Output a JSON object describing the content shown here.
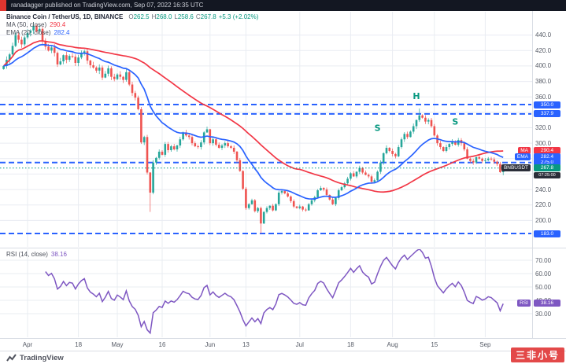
{
  "topbar": {
    "publish_text": "ranadagger published on TradingView.com, Sep 07, 2022 16:35 UTC"
  },
  "legend": {
    "symbol": "Binance Coin / TetherUS, 1D, BINANCE",
    "ohlc_items": [
      {
        "k": "O",
        "v": "262.5"
      },
      {
        "k": "H",
        "v": "268.0"
      },
      {
        "k": "L",
        "v": "258.6"
      },
      {
        "k": "C",
        "v": "267.8"
      }
    ],
    "change": "+5.3 (+2.02%)",
    "ma": {
      "label": "MA (50, close)",
      "value": "290.4"
    },
    "ema": {
      "label": "EMA (20, close)",
      "value": "282.4"
    }
  },
  "rsi_legend": {
    "label": "RSI (14, close)",
    "value": "38.16"
  },
  "axis": {
    "price_ticks": [
      {
        "label": "440.0",
        "value": 440
      },
      {
        "label": "420.0",
        "value": 420
      },
      {
        "label": "400.0",
        "value": 400
      },
      {
        "label": "380.0",
        "value": 380
      },
      {
        "label": "360.0",
        "value": 360
      },
      {
        "label": "320.0",
        "value": 320
      },
      {
        "label": "300.0",
        "value": 300
      },
      {
        "label": "240.0",
        "value": 240
      },
      {
        "label": "220.0",
        "value": 220
      },
      {
        "label": "200.0",
        "value": 200
      }
    ],
    "level_badges": [
      {
        "label": "350.0",
        "value": 350
      },
      {
        "label": "337.9",
        "value": 337.9
      },
      {
        "label": "275.0",
        "value": 275
      },
      {
        "label": "183.0",
        "value": 183
      }
    ],
    "ma_badge": {
      "name": "MA",
      "value": "290.4",
      "price": 290.4
    },
    "ema_badge": {
      "name": "EMA",
      "value": "282.4",
      "price": 282.4
    },
    "symbol_badge": {
      "name": "BNBUSDT",
      "value": "267.8",
      "price": 267.8,
      "countdown": "07:25:00"
    },
    "rsi_badge": {
      "name": "RSI",
      "value": "38.16",
      "rsi": 38.16
    },
    "rsi_ticks": [
      {
        "label": "70.00",
        "value": 70
      },
      {
        "label": "60.00",
        "value": 60
      },
      {
        "label": "50.00",
        "value": 50
      },
      {
        "label": "40.00",
        "value": 40
      },
      {
        "label": "30.00",
        "value": 30
      }
    ],
    "time_ticks": [
      {
        "label": "Apr",
        "day": 0
      },
      {
        "label": "18",
        "day": 17
      },
      {
        "label": "May",
        "day": 30
      },
      {
        "label": "16",
        "day": 45
      },
      {
        "label": "Jun",
        "day": 61
      },
      {
        "label": "13",
        "day": 73
      },
      {
        "label": "Jul",
        "day": 91
      },
      {
        "label": "18",
        "day": 108
      },
      {
        "label": "Aug",
        "day": 122
      },
      {
        "label": "15",
        "day": 136
      },
      {
        "label": "Sep",
        "day": 153
      }
    ]
  },
  "chart_data": {
    "type": "candlestick",
    "symbol": "BNB/USDT",
    "exchange": "BINANCE",
    "interval": "1D",
    "title": "Binance Coin / TetherUS, 1D, BINANCE",
    "start_date": "2022-03-24",
    "price_range": [
      180,
      460
    ],
    "close": [
      400,
      408,
      415,
      426,
      440,
      434,
      428,
      437,
      443,
      446,
      452,
      445,
      448,
      432,
      425,
      420,
      424,
      417,
      402,
      406,
      414,
      408,
      413,
      412,
      404,
      411,
      416,
      419,
      407,
      401,
      398,
      394,
      398,
      385,
      390,
      397,
      386,
      383,
      389,
      386,
      382,
      392,
      376,
      365,
      359,
      344,
      301,
      308,
      262,
      236,
      275,
      281,
      289,
      285,
      299,
      291,
      296,
      292,
      297,
      305,
      314,
      310,
      308,
      300,
      296,
      295,
      301,
      314,
      318,
      300,
      305,
      298,
      294,
      297,
      300,
      296,
      294,
      289,
      278,
      264,
      241,
      216,
      221,
      226,
      212,
      216,
      196,
      211,
      216,
      219,
      213,
      221,
      236,
      238,
      235,
      231,
      225,
      218,
      216,
      218,
      214,
      213,
      221,
      226,
      230,
      239,
      242,
      240,
      233,
      227,
      221,
      229,
      239,
      243,
      248,
      254,
      261,
      257,
      263,
      268,
      262,
      259,
      257,
      250,
      252,
      263,
      275,
      287,
      294,
      290,
      286,
      283,
      295,
      305,
      312,
      308,
      315,
      322,
      330,
      336,
      333,
      328,
      330,
      322,
      310,
      300,
      295,
      290,
      295,
      299,
      302,
      298,
      304,
      300,
      292,
      280,
      277,
      275,
      282,
      280,
      277,
      278,
      280,
      279,
      276,
      273,
      262.5,
      267.8
    ],
    "special_lows": {
      "49": 211,
      "86": 183
    },
    "special_highs": {
      "139": 345
    },
    "last_candle": {
      "open": 262.5,
      "high": 268.0,
      "low": 258.6,
      "close": 267.8,
      "change": "+5.3 (+2.02%)"
    },
    "levels": [
      350.0,
      337.9,
      275.0,
      183.0
    ],
    "annotations": [
      {
        "text": "S",
        "day": 117,
        "price": 316
      },
      {
        "text": "H",
        "day": 130,
        "price": 357
      },
      {
        "text": "S",
        "day": 143,
        "price": 324
      }
    ],
    "overlays": [
      {
        "name": "MA",
        "period": 50,
        "current": 290.4
      },
      {
        "name": "EMA",
        "period": 20,
        "current": 282.4
      }
    ],
    "rsi": {
      "period": 14,
      "current": 38.16,
      "ticks": [
        30,
        40,
        50,
        60,
        70
      ]
    }
  },
  "watermark": {
    "text": "三非小号"
  },
  "footer": {
    "logo_text": "TradingView"
  },
  "colors": {
    "up": "#26a69a",
    "down": "#ef5350",
    "ma": "#f23645",
    "ema": "#2962ff",
    "level": "#2962ff",
    "rsi": "#7e57c2",
    "grid": "#e9ecf2",
    "sep": "#d9dde4",
    "annot": "#089981",
    "current": "#089981",
    "badge_dark": "#2a2e39",
    "topbar_bg": "#131722"
  }
}
